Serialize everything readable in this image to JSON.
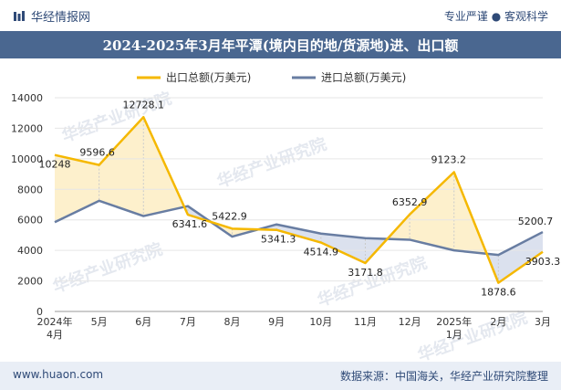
{
  "header": {
    "brand": "华经情报网",
    "tagline": "专业严谨 ● 客观科学"
  },
  "title": "2024-2025年3月年平潭(境内目的地/货源地)进、出口额",
  "footer": {
    "website": "www.huaon.com",
    "source": "数据来源：中国海关，华经产业研究院整理"
  },
  "watermark": "华经产业研究院",
  "colors": {
    "export": "#f5b800",
    "import": "#687da2",
    "fill_export_higher": "#fdf0cc",
    "fill_import_higher": "#dbe1ee",
    "header_bg": "#4a6790"
  },
  "chart_data": {
    "type": "line",
    "categories": [
      "2024年\n4月",
      "5月",
      "6月",
      "7月",
      "8月",
      "9月",
      "10月",
      "11月",
      "12月",
      "2025年\n1月",
      "2月",
      "3月"
    ],
    "series": [
      {
        "name": "出口总额(万美元)",
        "values": [
          10248,
          9596.6,
          12728.1,
          6341.6,
          5422.9,
          5341.3,
          4514.9,
          3171.8,
          6352.9,
          9123.2,
          1878.6,
          3903.3
        ],
        "labels": [
          "10248",
          "9596.6",
          "12728.1",
          "6341.6",
          "5422.9",
          "5341.3",
          "4514.9",
          "3171.8",
          "6352.9",
          "9123.2",
          "1878.6",
          "3903.3"
        ]
      },
      {
        "name": "进口总额(万美元)",
        "values": [
          5850,
          7250,
          6250,
          6900,
          4900,
          5700,
          5100,
          4800,
          4700,
          4000,
          3700,
          5200.7
        ],
        "labels": [
          "",
          "",
          "",
          "",
          "",
          "",
          "",
          "",
          "",
          "",
          "",
          "5200.7"
        ]
      }
    ],
    "ylim": [
      0,
      14000
    ],
    "yticks": [
      0,
      2000,
      4000,
      6000,
      8000,
      10000,
      12000,
      14000
    ],
    "legend_position": "top"
  }
}
